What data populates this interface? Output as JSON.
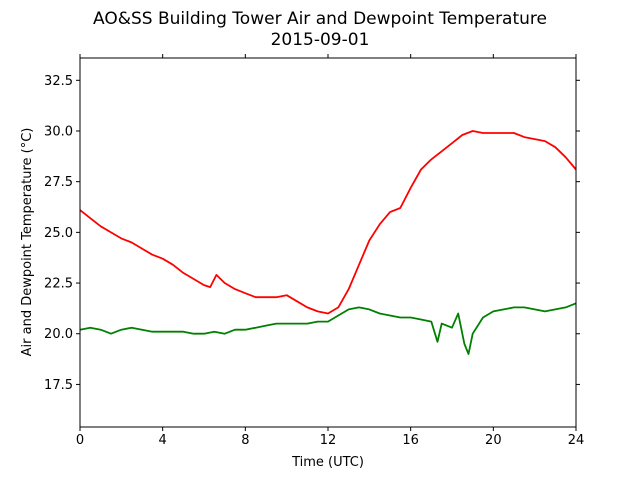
{
  "chart_data": {
    "type": "line",
    "title": "AO&SS Building Tower Air and Dewpoint Temperature",
    "subtitle": "2015-09-01",
    "xlabel": "Time (UTC)",
    "ylabel": "Air and Dewpoint Temperature (°C)",
    "xlim": [
      0,
      24
    ],
    "ylim": [
      15.4,
      33.6
    ],
    "xticks": [
      0,
      4,
      8,
      12,
      16,
      20,
      24
    ],
    "yticks": [
      17.5,
      20.0,
      22.5,
      25.0,
      27.5,
      30.0,
      32.5
    ],
    "grid": false,
    "legend": "none",
    "series": [
      {
        "color": "#ff0000",
        "points": [
          [
            0,
            26.1
          ],
          [
            0.5,
            25.7
          ],
          [
            1,
            25.3
          ],
          [
            1.5,
            25.0
          ],
          [
            2,
            24.7
          ],
          [
            2.5,
            24.5
          ],
          [
            3,
            24.2
          ],
          [
            3.5,
            23.9
          ],
          [
            4,
            23.7
          ],
          [
            4.5,
            23.4
          ],
          [
            5,
            23.0
          ],
          [
            5.5,
            22.7
          ],
          [
            6,
            22.4
          ],
          [
            6.3,
            22.3
          ],
          [
            6.6,
            22.9
          ],
          [
            7,
            22.5
          ],
          [
            7.5,
            22.2
          ],
          [
            8,
            22.0
          ],
          [
            8.5,
            21.8
          ],
          [
            9,
            21.8
          ],
          [
            9.5,
            21.8
          ],
          [
            10,
            21.9
          ],
          [
            10.5,
            21.6
          ],
          [
            11,
            21.3
          ],
          [
            11.5,
            21.1
          ],
          [
            12,
            21.0
          ],
          [
            12.5,
            21.3
          ],
          [
            13,
            22.2
          ],
          [
            13.5,
            23.4
          ],
          [
            14,
            24.6
          ],
          [
            14.5,
            25.4
          ],
          [
            15,
            26.0
          ],
          [
            15.5,
            26.2
          ],
          [
            16,
            27.2
          ],
          [
            16.5,
            28.1
          ],
          [
            17,
            28.6
          ],
          [
            17.5,
            29.0
          ],
          [
            18,
            29.4
          ],
          [
            18.5,
            29.8
          ],
          [
            19,
            30.0
          ],
          [
            19.5,
            29.9
          ],
          [
            20,
            29.9
          ],
          [
            20.5,
            29.9
          ],
          [
            21,
            29.9
          ],
          [
            21.5,
            29.7
          ],
          [
            22,
            29.6
          ],
          [
            22.5,
            29.5
          ],
          [
            23,
            29.2
          ],
          [
            23.5,
            28.7
          ],
          [
            24,
            28.1
          ]
        ]
      },
      {
        "color": "#008000",
        "points": [
          [
            0,
            20.2
          ],
          [
            0.5,
            20.3
          ],
          [
            1,
            20.2
          ],
          [
            1.5,
            20.0
          ],
          [
            2,
            20.2
          ],
          [
            2.5,
            20.3
          ],
          [
            3,
            20.2
          ],
          [
            3.5,
            20.1
          ],
          [
            4,
            20.1
          ],
          [
            4.5,
            20.1
          ],
          [
            5,
            20.1
          ],
          [
            5.5,
            20.0
          ],
          [
            6,
            20.0
          ],
          [
            6.5,
            20.1
          ],
          [
            7,
            20.0
          ],
          [
            7.5,
            20.2
          ],
          [
            8,
            20.2
          ],
          [
            8.5,
            20.3
          ],
          [
            9,
            20.4
          ],
          [
            9.5,
            20.5
          ],
          [
            10,
            20.5
          ],
          [
            10.5,
            20.5
          ],
          [
            11,
            20.5
          ],
          [
            11.5,
            20.6
          ],
          [
            12,
            20.6
          ],
          [
            12.5,
            20.9
          ],
          [
            13,
            21.2
          ],
          [
            13.5,
            21.3
          ],
          [
            14,
            21.2
          ],
          [
            14.5,
            21.0
          ],
          [
            15,
            20.9
          ],
          [
            15.5,
            20.8
          ],
          [
            16,
            20.8
          ],
          [
            16.5,
            20.7
          ],
          [
            17,
            20.6
          ],
          [
            17.3,
            19.6
          ],
          [
            17.5,
            20.5
          ],
          [
            18,
            20.3
          ],
          [
            18.3,
            21.0
          ],
          [
            18.6,
            19.5
          ],
          [
            18.8,
            19.0
          ],
          [
            19,
            20.0
          ],
          [
            19.5,
            20.8
          ],
          [
            20,
            21.1
          ],
          [
            20.5,
            21.2
          ],
          [
            21,
            21.3
          ],
          [
            21.5,
            21.3
          ],
          [
            22,
            21.2
          ],
          [
            22.5,
            21.1
          ],
          [
            23,
            21.2
          ],
          [
            23.5,
            21.3
          ],
          [
            24,
            21.5
          ]
        ]
      }
    ]
  }
}
